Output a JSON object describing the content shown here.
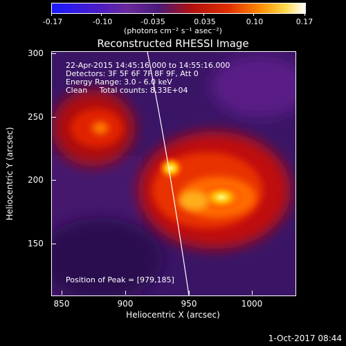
{
  "colorbar": {
    "ticks": [
      "-0.17",
      "-0.10",
      "-0.035",
      "0.035",
      "0.10",
      "0.17"
    ],
    "unit": "(photons cm⁻² s⁻¹ asec⁻²)"
  },
  "title": "Reconstructed RHESSI Image",
  "info": {
    "line1": "22-Apr-2015 14:45:16.000 to 14:55:16.000",
    "line2": "Detectors: 3F 5F 6F 7F 8F 9F, Att 0",
    "line3": "Energy Range: 3.0 - 6.0 keV",
    "line4": "Clean     Total counts: 8.33E+04",
    "peak": "Position of Peak = [979,185]"
  },
  "axes": {
    "xlabel": "Heliocentric X (arcsec)",
    "ylabel": "Heliocentric Y (arcsec)",
    "xticks": [
      "850",
      "900",
      "950",
      "1000"
    ],
    "yticks": [
      "300",
      "250",
      "200",
      "150"
    ]
  },
  "footer": "1-Oct-2017 08:44"
}
